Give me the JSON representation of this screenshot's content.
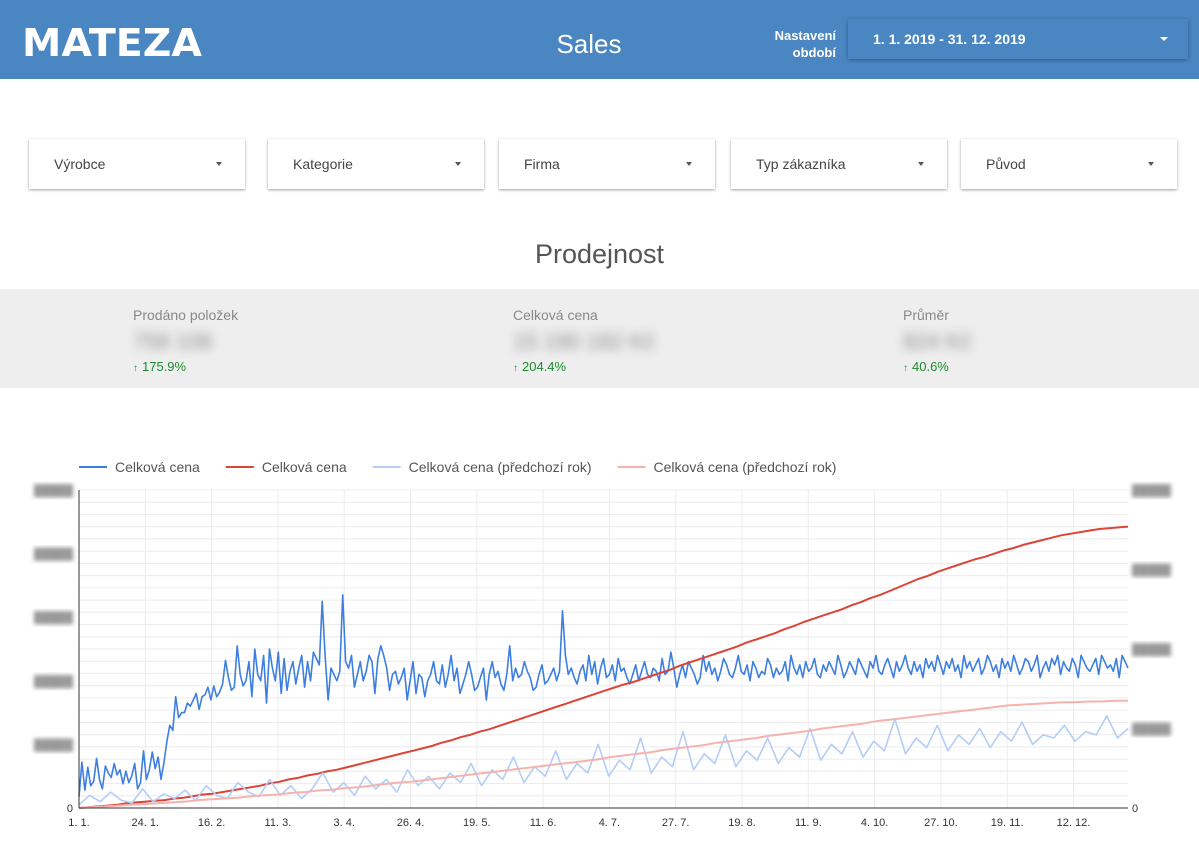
{
  "header": {
    "logo_text": "MATEZA",
    "title": "Sales",
    "period_label_line1": "Nastavení",
    "period_label_line2": "období",
    "period_value": "1. 1. 2019 - 31. 12. 2019"
  },
  "filters": [
    {
      "label": "Výrobce"
    },
    {
      "label": "Kategorie"
    },
    {
      "label": "Firma"
    },
    {
      "label": "Typ zákazníka"
    },
    {
      "label": "Původ"
    }
  ],
  "section_title": "Prodejnost",
  "kpis": [
    {
      "label": "Prodáno položek",
      "value": "758 106",
      "change": "175.9%",
      "trend": "up"
    },
    {
      "label": "Celková cena",
      "value": "15 190 182 Kč",
      "change": "204.4%",
      "trend": "up"
    },
    {
      "label": "Průměr",
      "value": "824 Kč",
      "change": "40.6%",
      "trend": "up"
    }
  ],
  "colors": {
    "header_bg": "#4a86c2",
    "series_current": "#3d7fe0",
    "series_cumulative": "#dd4437",
    "series_prev": "#b3cdf7",
    "series_prev_cumulative": "#f5b3ad",
    "positive_change": "#1e8a2d"
  },
  "chart_data": {
    "type": "line",
    "x_ticks": [
      "1. 1.",
      "24. 1.",
      "16. 2.",
      "11. 3.",
      "3. 4.",
      "26. 4.",
      "19. 5.",
      "11. 6.",
      "4. 7.",
      "27. 7.",
      "19. 8.",
      "11. 9.",
      "4. 10.",
      "27. 10.",
      "19. 11.",
      "12. 12."
    ],
    "y_left_ticks": [
      "0",
      "",
      "",
      "",
      "",
      ""
    ],
    "y_right_ticks": [
      "0",
      "",
      "",
      "",
      ""
    ],
    "ylim_left": [
      0,
      5
    ],
    "ylim_right": [
      0,
      4
    ],
    "grid": true,
    "legend_position": "top",
    "series": [
      {
        "name": "Celková cena",
        "axis": "left",
        "color": "#3d7fe0",
        "values": [
          0.18,
          0.72,
          0.28,
          0.64,
          0.35,
          0.42,
          0.78,
          0.45,
          0.3,
          0.66,
          0.55,
          0.48,
          0.7,
          0.52,
          0.6,
          0.38,
          0.58,
          0.4,
          0.5,
          0.7,
          0.3,
          0.4,
          0.9,
          0.45,
          0.6,
          0.88,
          0.62,
          0.8,
          0.45,
          0.72,
          1.05,
          1.3,
          1.22,
          1.75,
          1.42,
          1.5,
          1.5,
          1.65,
          1.6,
          1.7,
          1.8,
          1.55,
          1.75,
          1.78,
          1.9,
          1.7,
          1.92,
          1.75,
          1.82,
          1.95,
          2.32,
          2.05,
          1.85,
          1.9,
          2.55,
          2.1,
          1.92,
          2.0,
          2.3,
          1.75,
          2.5,
          2.1,
          2.0,
          2.4,
          1.65,
          2.5,
          2.2,
          2.0,
          2.45,
          1.8,
          2.35,
          1.85,
          2.15,
          2.3,
          1.95,
          2.2,
          2.4,
          1.9,
          2.3,
          2.0,
          2.45,
          2.35,
          2.25,
          3.25,
          2.4,
          1.7,
          2.2,
          2.1,
          2.0,
          2.15,
          3.35,
          2.3,
          2.2,
          2.4,
          1.9,
          2.1,
          2.3,
          2.0,
          2.15,
          2.4,
          2.3,
          1.8,
          2.35,
          2.55,
          2.4,
          2.2,
          1.85,
          2.1,
          2.15,
          1.95,
          2.05,
          2.2,
          1.7,
          2.0,
          2.3,
          1.8,
          2.1,
          2.05,
          1.75,
          2.0,
          2.1,
          2.3,
          2.0,
          1.95,
          2.25,
          1.9,
          2.1,
          2.4,
          2.0,
          2.2,
          1.8,
          1.95,
          2.1,
          2.3,
          2.1,
          1.85,
          1.9,
          2.05,
          2.2,
          1.7,
          2.1,
          2.3,
          2.05,
          2.15,
          1.95,
          1.85,
          2.1,
          2.55,
          2.0,
          2.2,
          2.05,
          2.1,
          2.3,
          2.15,
          2.05,
          1.85,
          1.9,
          2.1,
          2.25,
          1.95,
          2.0,
          2.1,
          2.2,
          2.0,
          2.15,
          3.1,
          2.4,
          2.1,
          2.2,
          2.05,
          1.95,
          2.15,
          2.25,
          2.0,
          2.4,
          2.1,
          2.3,
          1.95,
          2.2,
          2.35,
          2.05,
          2.1,
          2.25,
          2.0,
          2.35,
          2.15,
          2.2,
          2.05,
          1.95,
          2.1,
          2.25,
          2.0,
          2.15,
          2.3,
          2.1,
          2.05,
          2.2,
          2.15,
          2.0,
          2.35,
          2.1,
          2.15,
          2.45,
          2.2,
          1.9,
          2.1,
          2.25,
          2.05,
          2.3,
          2.2,
          2.1,
          1.95,
          2.05,
          2.4,
          2.15,
          2.3,
          2.1,
          2.2,
          2.0,
          2.15,
          2.35,
          2.25,
          2.1,
          2.05,
          2.2,
          2.4,
          2.15,
          2.1,
          2.25,
          2.0,
          2.3,
          2.2,
          2.05,
          2.15,
          2.1,
          2.35,
          2.25,
          2.05,
          2.2,
          2.1,
          2.15,
          2.3,
          2.0,
          2.4,
          2.2,
          2.1,
          2.25,
          2.05,
          2.3,
          2.15,
          2.2,
          2.35,
          2.1,
          2.05,
          2.25,
          2.15,
          2.3,
          2.2,
          2.1,
          2.4,
          2.25,
          2.05,
          2.15,
          2.3,
          2.2,
          2.1,
          2.35,
          2.25,
          2.15,
          2.05,
          2.3,
          2.2,
          2.4,
          2.15,
          2.1,
          2.25,
          2.35,
          2.2,
          2.05,
          2.3,
          2.15,
          2.25,
          2.4,
          2.2,
          2.1,
          2.3,
          2.15,
          2.25,
          2.05,
          2.35,
          2.2,
          2.3,
          2.15,
          2.4,
          2.25,
          2.1,
          2.3,
          2.2,
          2.35,
          2.15,
          2.25,
          2.05,
          2.4,
          2.2,
          2.3,
          2.15,
          2.25,
          2.35,
          2.1,
          2.2,
          2.4,
          2.3,
          2.15,
          2.25,
          2.05,
          2.35,
          2.2,
          2.3,
          2.15,
          2.4,
          2.25,
          2.1,
          2.2,
          2.35,
          2.3,
          2.15,
          2.25,
          2.4,
          2.05,
          2.2,
          2.3,
          2.15,
          2.35,
          2.25,
          2.4,
          2.1,
          2.3,
          2.2,
          2.15,
          2.35,
          2.25,
          2.05,
          2.4,
          2.3,
          2.2,
          2.15,
          2.25,
          2.35,
          2.1,
          2.4,
          2.3,
          2.2,
          2.25,
          2.15,
          2.35,
          2.05,
          2.4,
          2.3,
          2.2
        ]
      },
      {
        "name": "Celková cena",
        "axis": "right",
        "color": "#dd4437",
        "values": [
          0.0,
          0.01,
          0.02,
          0.03,
          0.04,
          0.06,
          0.07,
          0.08,
          0.09,
          0.1,
          0.12,
          0.13,
          0.15,
          0.17,
          0.18,
          0.2,
          0.22,
          0.24,
          0.26,
          0.28,
          0.31,
          0.33,
          0.36,
          0.38,
          0.41,
          0.43,
          0.46,
          0.48,
          0.51,
          0.54,
          0.57,
          0.6,
          0.63,
          0.66,
          0.69,
          0.72,
          0.75,
          0.78,
          0.82,
          0.85,
          0.89,
          0.92,
          0.96,
          0.99,
          1.03,
          1.07,
          1.11,
          1.15,
          1.19,
          1.23,
          1.27,
          1.31,
          1.35,
          1.39,
          1.43,
          1.47,
          1.51,
          1.55,
          1.58,
          1.62,
          1.66,
          1.7,
          1.74,
          1.79,
          1.83,
          1.87,
          1.91,
          1.95,
          1.99,
          2.03,
          2.08,
          2.12,
          2.16,
          2.2,
          2.25,
          2.29,
          2.34,
          2.38,
          2.42,
          2.46,
          2.5,
          2.55,
          2.59,
          2.64,
          2.68,
          2.73,
          2.78,
          2.83,
          2.88,
          2.92,
          2.97,
          3.01,
          3.05,
          3.09,
          3.13,
          3.16,
          3.2,
          3.24,
          3.27,
          3.31,
          3.34,
          3.37,
          3.4,
          3.43,
          3.45,
          3.47,
          3.49,
          3.51,
          3.52,
          3.53,
          3.54
        ]
      },
      {
        "name": "Celková cena (předchozí rok)",
        "axis": "left",
        "color": "#b3cdf7",
        "values": [
          0.05,
          0.2,
          0.1,
          0.25,
          0.12,
          0.08,
          0.3,
          0.1,
          0.22,
          0.15,
          0.28,
          0.12,
          0.35,
          0.2,
          0.15,
          0.4,
          0.25,
          0.18,
          0.45,
          0.2,
          0.35,
          0.15,
          0.3,
          0.55,
          0.25,
          0.4,
          0.2,
          0.5,
          0.3,
          0.45,
          0.25,
          0.6,
          0.35,
          0.5,
          0.3,
          0.55,
          0.4,
          0.7,
          0.35,
          0.6,
          0.45,
          0.8,
          0.4,
          0.65,
          0.5,
          0.9,
          0.45,
          0.7,
          0.55,
          1.0,
          0.5,
          0.75,
          0.6,
          1.1,
          0.55,
          0.8,
          0.65,
          1.2,
          0.6,
          0.85,
          0.7,
          1.15,
          0.65,
          0.9,
          0.75,
          1.1,
          0.7,
          0.95,
          0.8,
          1.25,
          0.75,
          1.0,
          0.85,
          1.2,
          0.8,
          1.05,
          0.9,
          1.4,
          0.85,
          1.1,
          0.95,
          1.3,
          0.9,
          1.15,
          1.0,
          1.25,
          0.95,
          1.2,
          1.05,
          1.35,
          1.0,
          1.15,
          1.1,
          1.3,
          1.05,
          1.2,
          1.15,
          1.45,
          1.1,
          1.25
        ]
      },
      {
        "name": "Celková cena (předchozí rok)",
        "axis": "right",
        "color": "#f5b3ad",
        "values": [
          0.0,
          0.01,
          0.02,
          0.03,
          0.04,
          0.05,
          0.06,
          0.07,
          0.08,
          0.1,
          0.11,
          0.12,
          0.13,
          0.15,
          0.16,
          0.17,
          0.19,
          0.2,
          0.22,
          0.23,
          0.25,
          0.26,
          0.28,
          0.3,
          0.32,
          0.33,
          0.35,
          0.37,
          0.39,
          0.41,
          0.43,
          0.45,
          0.47,
          0.49,
          0.51,
          0.53,
          0.55,
          0.57,
          0.59,
          0.61,
          0.64,
          0.66,
          0.68,
          0.7,
          0.73,
          0.75,
          0.77,
          0.79,
          0.82,
          0.84,
          0.86,
          0.88,
          0.91,
          0.93,
          0.95,
          0.97,
          1.0,
          1.02,
          1.04,
          1.06,
          1.09,
          1.11,
          1.13,
          1.15,
          1.17,
          1.19,
          1.21,
          1.23,
          1.25,
          1.27,
          1.29,
          1.3,
          1.31,
          1.32,
          1.33,
          1.33,
          1.34,
          1.34,
          1.35,
          1.35
        ]
      }
    ]
  }
}
